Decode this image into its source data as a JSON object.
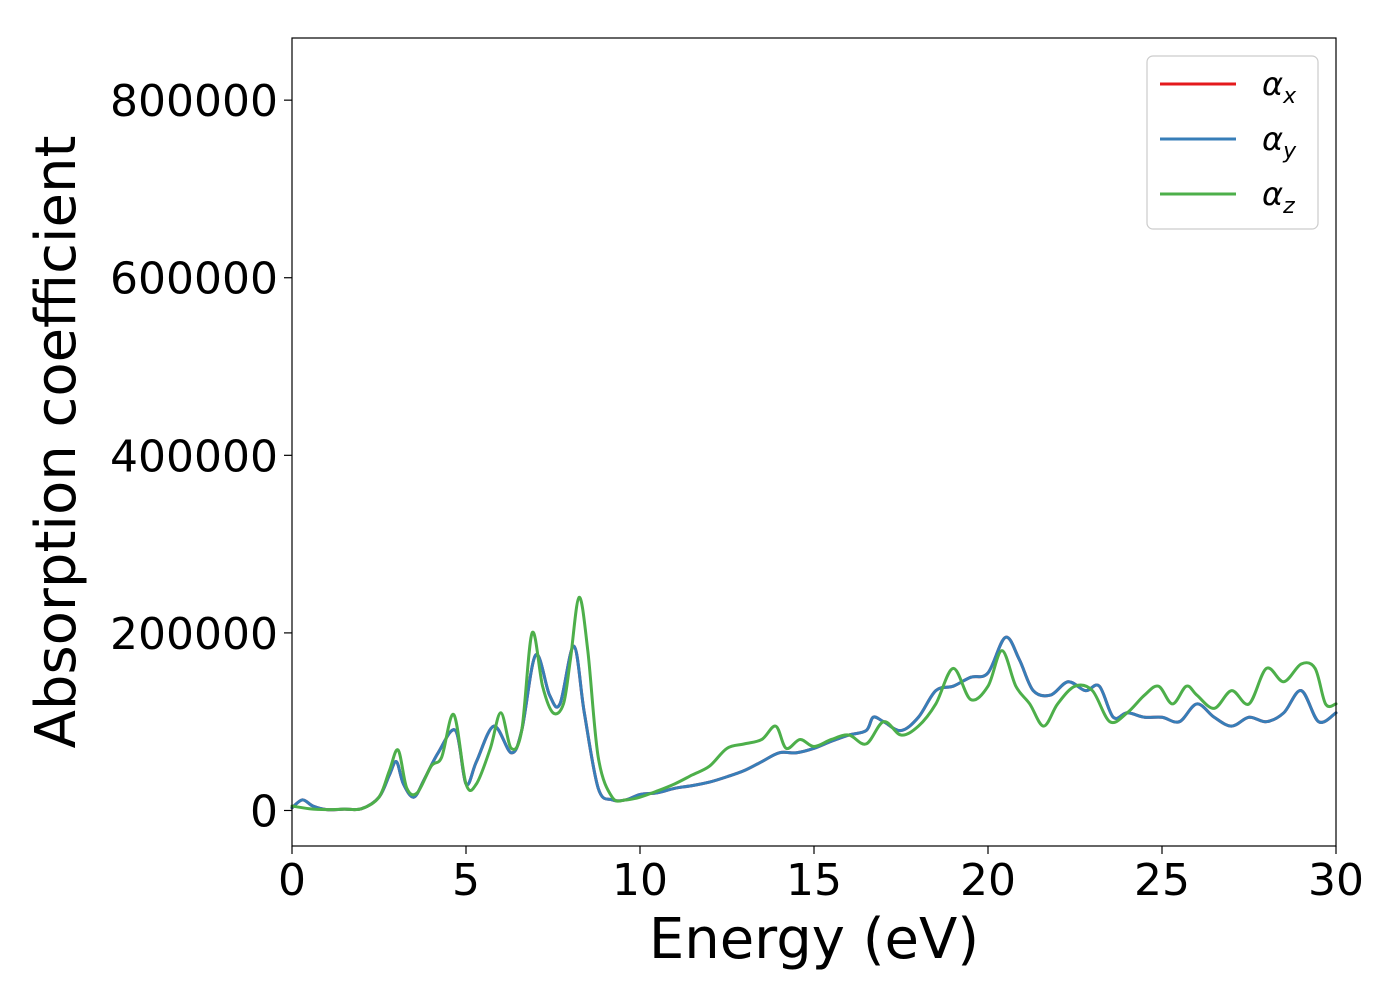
{
  "chart_data": {
    "type": "line",
    "title": "",
    "xlabel": "Energy (eV)",
    "ylabel": "Absorption coefficient",
    "xlim": [
      0,
      30
    ],
    "ylim": [
      -40000,
      870000
    ],
    "x_ticks": [
      0,
      5,
      10,
      15,
      20,
      25,
      30
    ],
    "y_ticks": [
      0,
      200000,
      400000,
      600000,
      800000
    ],
    "x_tick_labels": [
      "0",
      "5",
      "10",
      "15",
      "20",
      "25",
      "30"
    ],
    "y_tick_labels": [
      "0",
      "200000",
      "400000",
      "600000",
      "800000"
    ],
    "grid": false,
    "legend_position": "top-right",
    "series": [
      {
        "name": "α_x",
        "legend_symbol": "α",
        "legend_subscript": "x",
        "color": "#e41a1c",
        "x": [
          0.0,
          0.3,
          0.6,
          1.0,
          1.5,
          2.0,
          2.5,
          2.8,
          3.0,
          3.2,
          3.5,
          3.8,
          4.2,
          4.7,
          5.0,
          5.3,
          5.8,
          6.3,
          6.6,
          7.0,
          7.4,
          7.7,
          8.1,
          8.4,
          8.8,
          9.2,
          9.6,
          10.0,
          10.5,
          11.0,
          11.5,
          12.0,
          12.5,
          13.0,
          13.5,
          14.0,
          14.5,
          15.0,
          15.5,
          16.0,
          16.5,
          16.7,
          17.0,
          17.5,
          18.0,
          18.5,
          19.0,
          19.5,
          20.0,
          20.5,
          20.9,
          21.3,
          21.8,
          22.3,
          22.8,
          23.2,
          23.6,
          24.0,
          24.5,
          25.0,
          25.5,
          26.0,
          26.5,
          27.0,
          27.5,
          28.0,
          28.5,
          29.0,
          29.5,
          30.0
        ],
        "y": [
          3000,
          12000,
          5000,
          1000,
          1500,
          2000,
          15000,
          40000,
          55000,
          30000,
          15000,
          35000,
          65000,
          90000,
          30000,
          55000,
          95000,
          65000,
          90000,
          175000,
          130000,
          120000,
          185000,
          110000,
          25000,
          12000,
          12000,
          18000,
          20000,
          25000,
          28000,
          32000,
          38000,
          45000,
          55000,
          65000,
          65000,
          70000,
          78000,
          85000,
          90000,
          105000,
          100000,
          90000,
          105000,
          135000,
          140000,
          150000,
          155000,
          195000,
          170000,
          135000,
          130000,
          145000,
          135000,
          140000,
          105000,
          110000,
          105000,
          105000,
          100000,
          120000,
          105000,
          95000,
          105000,
          100000,
          110000,
          135000,
          100000,
          110000
        ]
      },
      {
        "name": "α_y",
        "legend_symbol": "α",
        "legend_subscript": "y",
        "color": "#377eb8",
        "x": [
          0.0,
          0.3,
          0.6,
          1.0,
          1.5,
          2.0,
          2.5,
          2.8,
          3.0,
          3.2,
          3.5,
          3.8,
          4.2,
          4.7,
          5.0,
          5.3,
          5.8,
          6.3,
          6.6,
          7.0,
          7.4,
          7.7,
          8.1,
          8.4,
          8.8,
          9.2,
          9.6,
          10.0,
          10.5,
          11.0,
          11.5,
          12.0,
          12.5,
          13.0,
          13.5,
          14.0,
          14.5,
          15.0,
          15.5,
          16.0,
          16.5,
          16.7,
          17.0,
          17.5,
          18.0,
          18.5,
          19.0,
          19.5,
          20.0,
          20.5,
          20.9,
          21.3,
          21.8,
          22.3,
          22.8,
          23.2,
          23.6,
          24.0,
          24.5,
          25.0,
          25.5,
          26.0,
          26.5,
          27.0,
          27.5,
          28.0,
          28.5,
          29.0,
          29.5,
          30.0
        ],
        "y": [
          3000,
          12000,
          5000,
          1000,
          1500,
          2000,
          15000,
          40000,
          55000,
          30000,
          15000,
          35000,
          65000,
          90000,
          30000,
          55000,
          95000,
          65000,
          90000,
          175000,
          130000,
          120000,
          185000,
          110000,
          25000,
          12000,
          12000,
          18000,
          20000,
          25000,
          28000,
          32000,
          38000,
          45000,
          55000,
          65000,
          65000,
          70000,
          78000,
          85000,
          90000,
          105000,
          100000,
          90000,
          105000,
          135000,
          140000,
          150000,
          155000,
          195000,
          170000,
          135000,
          130000,
          145000,
          135000,
          140000,
          105000,
          110000,
          105000,
          105000,
          100000,
          120000,
          105000,
          95000,
          105000,
          100000,
          110000,
          135000,
          100000,
          110000
        ]
      },
      {
        "name": "α_z",
        "legend_symbol": "α",
        "legend_subscript": "z",
        "color": "#4daf4a",
        "x": [
          0.0,
          0.5,
          1.0,
          1.5,
          2.0,
          2.5,
          2.8,
          3.05,
          3.3,
          3.6,
          4.0,
          4.3,
          4.65,
          5.0,
          5.3,
          5.7,
          6.0,
          6.3,
          6.6,
          6.9,
          7.2,
          7.5,
          7.8,
          8.0,
          8.25,
          8.5,
          8.8,
          9.2,
          9.6,
          10.0,
          10.5,
          11.0,
          11.5,
          12.0,
          12.5,
          13.0,
          13.5,
          13.9,
          14.2,
          14.6,
          15.0,
          15.5,
          16.0,
          16.5,
          17.0,
          17.5,
          18.0,
          18.5,
          19.0,
          19.5,
          20.0,
          20.4,
          20.8,
          21.2,
          21.6,
          22.0,
          22.5,
          23.0,
          23.5,
          24.0,
          24.5,
          24.9,
          25.3,
          25.7,
          26.0,
          26.5,
          27.0,
          27.5,
          28.0,
          28.5,
          29.0,
          29.4,
          29.7,
          30.0
        ],
        "y": [
          5000,
          2000,
          1000,
          1500,
          2000,
          15000,
          45000,
          68000,
          25000,
          20000,
          50000,
          60000,
          108000,
          30000,
          30000,
          70000,
          110000,
          70000,
          90000,
          200000,
          140000,
          110000,
          120000,
          170000,
          240000,
          180000,
          60000,
          15000,
          12000,
          15000,
          22000,
          30000,
          40000,
          50000,
          70000,
          75000,
          80000,
          95000,
          70000,
          80000,
          72000,
          80000,
          85000,
          75000,
          100000,
          85000,
          95000,
          120000,
          160000,
          125000,
          140000,
          180000,
          140000,
          120000,
          95000,
          120000,
          140000,
          135000,
          100000,
          110000,
          130000,
          140000,
          120000,
          140000,
          130000,
          115000,
          135000,
          120000,
          160000,
          145000,
          165000,
          160000,
          120000,
          120000
        ]
      }
    ]
  }
}
